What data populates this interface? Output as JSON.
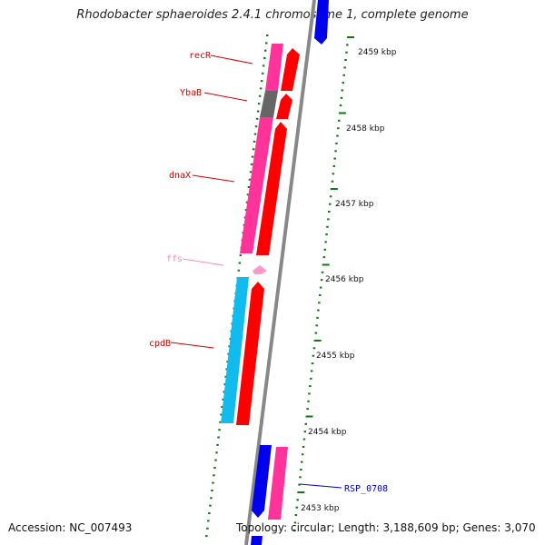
{
  "title": "Rhodobacter sphaeroides 2.4.1 chromosome 1, complete genome",
  "accession": "Accession: NC_007493",
  "topology": "Topology: circular; Length: 3,188,609 bp; Genes: 3,070",
  "colors": {
    "backbone": "#888888",
    "tick": "#117711",
    "forward_gene": "#ff0000",
    "cds_pink": "#ff3399",
    "cds_gray": "#666666",
    "cds_cyan": "#11bbee",
    "reverse_gene": "#0000ee",
    "rna_light": "#ff99cc",
    "label_red": "#cc0000",
    "label_blue": "#0000cc",
    "label_pink": "#ff88bb"
  },
  "scale_labels": [
    "2459 kbp",
    "2458 kbp",
    "2457 kbp",
    "2456 kbp",
    "2455 kbp",
    "2454 kbp",
    "2453 kbp"
  ],
  "gene_labels": {
    "recR": "recR",
    "YbaB": "YbaB",
    "dnaX": "dnaX",
    "ffs": "ffs",
    "cpdB": "cpdB",
    "RSP_0708": "RSP_0708"
  }
}
